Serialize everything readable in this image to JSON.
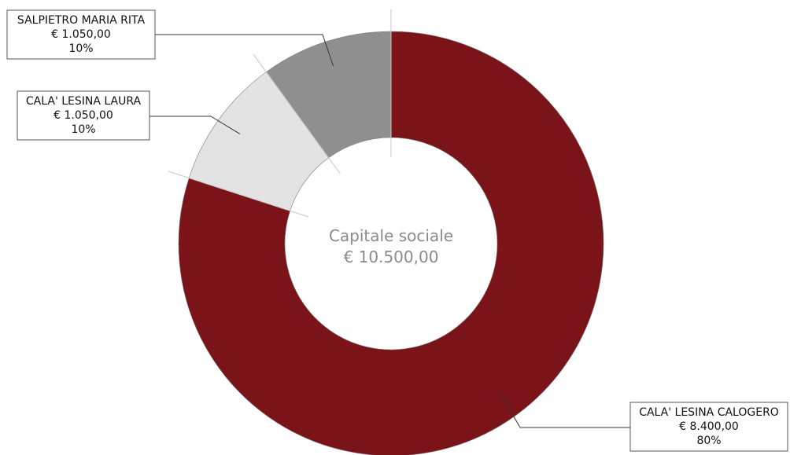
{
  "chart_data": {
    "type": "pie",
    "variant": "donut",
    "center_label": {
      "title": "Capitale sociale",
      "value": "€ 10.500,00"
    },
    "slices": [
      {
        "label": "CALA' LESINA CALOGERO",
        "amount": "€ 8.400,00",
        "value": 8400,
        "percent": "80%",
        "color": "#7a1418"
      },
      {
        "label": "CALA' LESINA LAURA",
        "amount": "€ 1.050,00",
        "value": 1050,
        "percent": "10%",
        "color": "#e3e3e3"
      },
      {
        "label": "SALPIETRO MARIA RITA",
        "amount": "€ 1.050,00",
        "value": 1050,
        "percent": "10%",
        "color": "#8f8f8f"
      }
    ]
  }
}
